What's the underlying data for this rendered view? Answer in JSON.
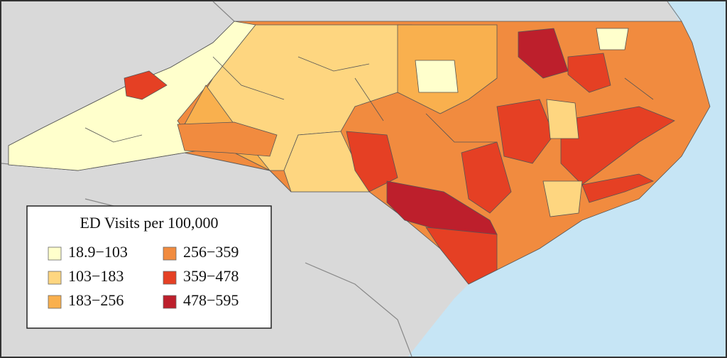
{
  "legend": {
    "title": "ED Visits per 100,000",
    "items": [
      {
        "label": "18.9−103",
        "color": "#ffffcc"
      },
      {
        "label": "103−183",
        "color": "#fed680"
      },
      {
        "label": "183−256",
        "color": "#f9b04e"
      },
      {
        "label": "256−359",
        "color": "#f18b3f"
      },
      {
        "label": "359−478",
        "color": "#e54024"
      },
      {
        "label": "478−595",
        "color": "#bd1f2c"
      }
    ]
  }
}
